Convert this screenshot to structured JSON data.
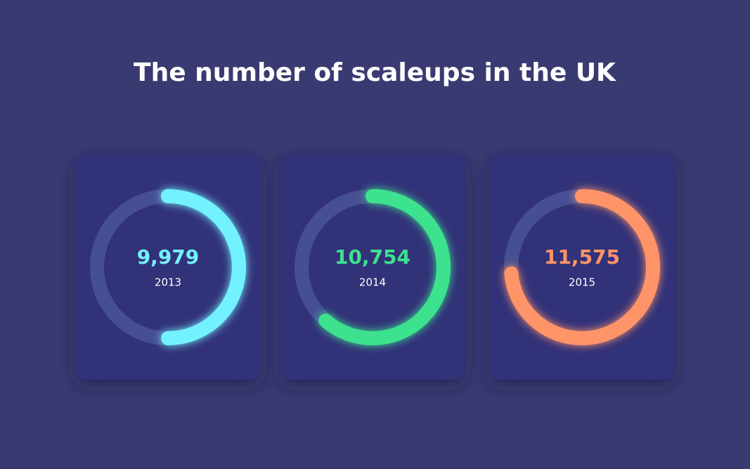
{
  "chart_data": {
    "type": "gauge",
    "title": "The number of scaleups in the UK",
    "categories": [
      "2013",
      "2014",
      "2015"
    ],
    "values": [
      9979,
      10754,
      11575
    ],
    "value_labels": [
      "9,979",
      "10,754",
      "11,575"
    ],
    "colors": [
      "#72f2ff",
      "#3ee28e",
      "#ff9468"
    ],
    "ylim": [
      6600,
      13360
    ]
  }
}
